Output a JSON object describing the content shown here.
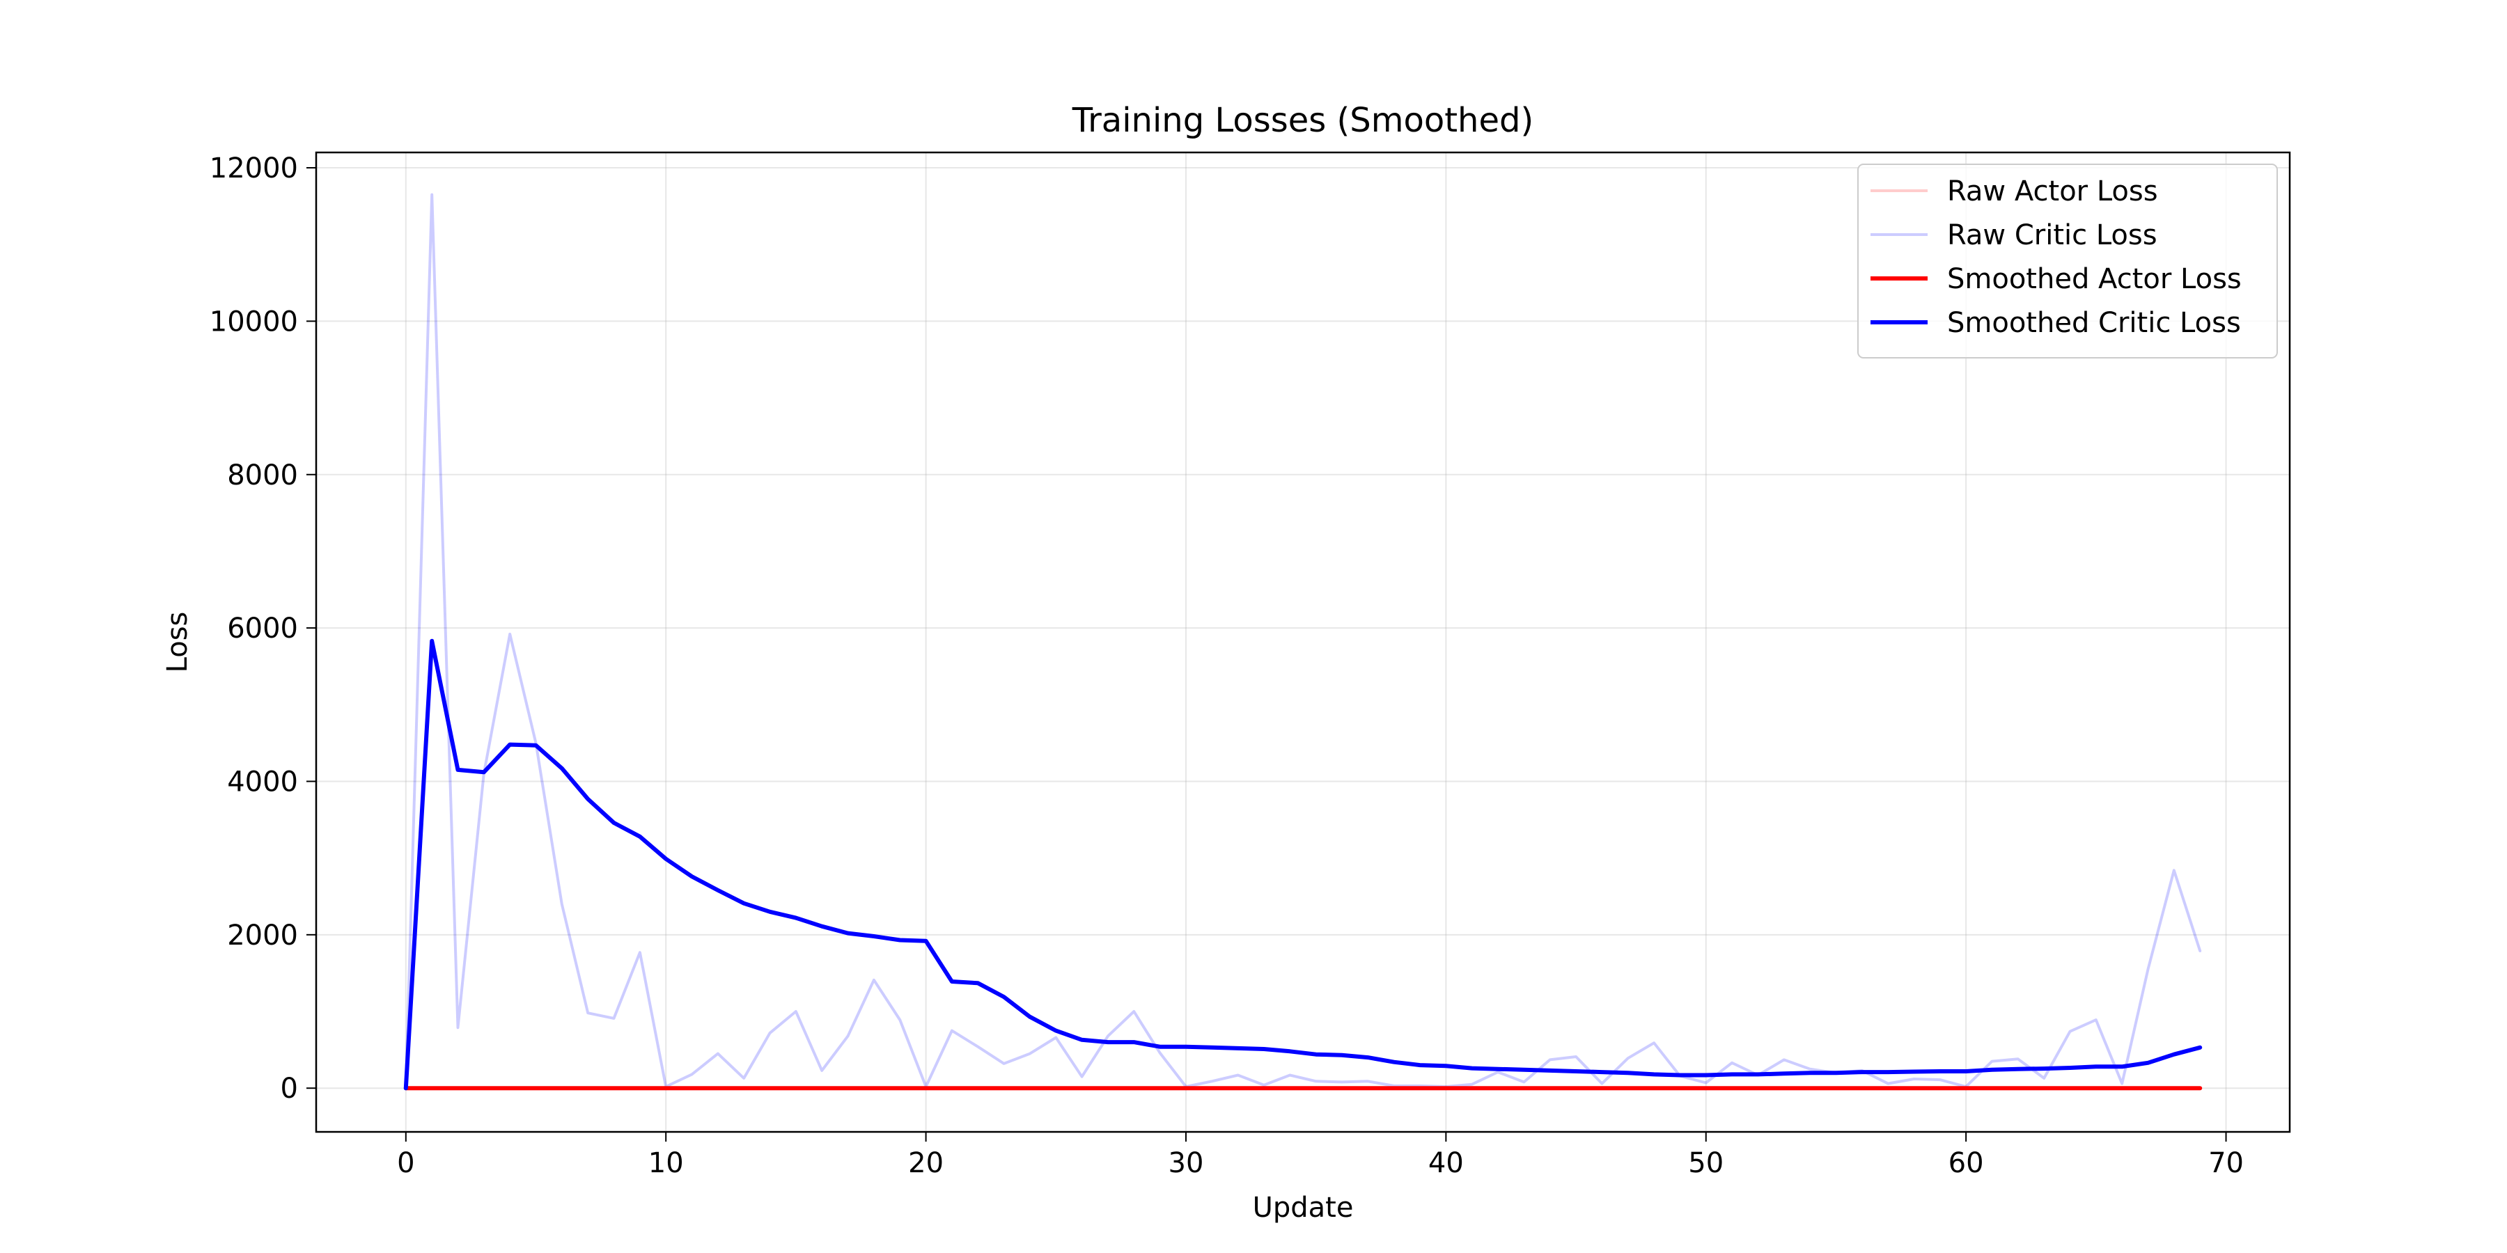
{
  "chart_data": {
    "type": "line",
    "title": "Training Losses (Smoothed)",
    "xlabel": "Update",
    "ylabel": "Loss",
    "xlim": [
      -3.45,
      72.45
    ],
    "ylim": [
      -570,
      12200
    ],
    "xticks": [
      0,
      10,
      20,
      30,
      40,
      50,
      60,
      70
    ],
    "yticks": [
      0,
      2000,
      4000,
      6000,
      8000,
      10000,
      12000
    ],
    "grid": true,
    "legend_position": "upper right",
    "x": [
      0,
      1,
      2,
      3,
      4,
      5,
      6,
      7,
      8,
      9,
      10,
      11,
      12,
      13,
      14,
      15,
      16,
      17,
      18,
      19,
      20,
      21,
      22,
      23,
      24,
      25,
      26,
      27,
      28,
      29,
      30,
      31,
      32,
      33,
      34,
      35,
      36,
      37,
      38,
      39,
      40,
      41,
      42,
      43,
      44,
      45,
      46,
      47,
      48,
      49,
      50,
      51,
      52,
      53,
      54,
      55,
      56,
      57,
      58,
      59,
      60,
      61,
      62,
      63,
      64,
      65,
      66,
      67,
      68,
      69
    ],
    "series": [
      {
        "name": "Raw Actor Loss",
        "color": "#ff0000",
        "opacity": 0.2,
        "values": [
          0,
          0,
          0,
          0,
          0,
          0,
          0,
          0,
          0,
          0,
          0,
          0,
          0,
          0,
          0,
          0,
          0,
          0,
          0,
          0,
          0,
          0,
          0,
          0,
          0,
          0,
          0,
          0,
          0,
          0,
          0,
          0,
          0,
          0,
          0,
          0,
          0,
          0,
          0,
          0,
          0,
          0,
          0,
          0,
          0,
          0,
          0,
          0,
          0,
          0,
          0,
          0,
          0,
          0,
          0,
          0,
          0,
          0,
          0,
          0,
          0,
          0,
          0,
          0,
          0,
          0,
          0,
          0,
          0,
          0
        ]
      },
      {
        "name": "Raw Critic Loss",
        "color": "#0000ff",
        "opacity": 0.2,
        "values": [
          0,
          11650,
          790,
          4100,
          5920,
          4500,
          2400,
          980,
          910,
          1770,
          20,
          180,
          450,
          130,
          720,
          1000,
          230,
          680,
          1410,
          890,
          20,
          750,
          540,
          320,
          450,
          660,
          150,
          680,
          1000,
          460,
          20,
          90,
          170,
          40,
          170,
          90,
          80,
          90,
          30,
          30,
          20,
          50,
          210,
          80,
          370,
          410,
          60,
          390,
          590,
          160,
          70,
          330,
          170,
          370,
          250,
          200,
          230,
          60,
          120,
          110,
          20,
          350,
          380,
          130,
          740,
          890,
          60,
          1550,
          2840,
          1790
        ]
      },
      {
        "name": "Smoothed Actor Loss",
        "color": "#ff0000",
        "opacity": 1,
        "values": [
          0,
          0,
          0,
          0,
          0,
          0,
          0,
          0,
          0,
          0,
          0,
          0,
          0,
          0,
          0,
          0,
          0,
          0,
          0,
          0,
          0,
          0,
          0,
          0,
          0,
          0,
          0,
          0,
          0,
          0,
          0,
          0,
          0,
          0,
          0,
          0,
          0,
          0,
          0,
          0,
          0,
          0,
          0,
          0,
          0,
          0,
          0,
          0,
          0,
          0,
          0,
          0,
          0,
          0,
          0,
          0,
          0,
          0,
          0,
          0,
          0,
          0,
          0,
          0,
          0,
          0,
          0,
          0,
          0,
          0
        ]
      },
      {
        "name": "Smoothed Critic Loss",
        "color": "#0000ff",
        "opacity": 1,
        "values": [
          0,
          5830,
          4150,
          4120,
          4480,
          4470,
          4170,
          3770,
          3460,
          3280,
          2990,
          2760,
          2580,
          2410,
          2300,
          2220,
          2110,
          2020,
          1980,
          1930,
          1920,
          1390,
          1370,
          1190,
          930,
          750,
          630,
          600,
          600,
          540,
          540,
          530,
          520,
          510,
          480,
          440,
          430,
          400,
          340,
          300,
          290,
          260,
          250,
          240,
          230,
          220,
          210,
          200,
          180,
          170,
          170,
          180,
          180,
          190,
          200,
          200,
          210,
          210,
          215,
          220,
          220,
          240,
          250,
          255,
          265,
          280,
          280,
          330,
          440,
          530
        ]
      }
    ]
  }
}
